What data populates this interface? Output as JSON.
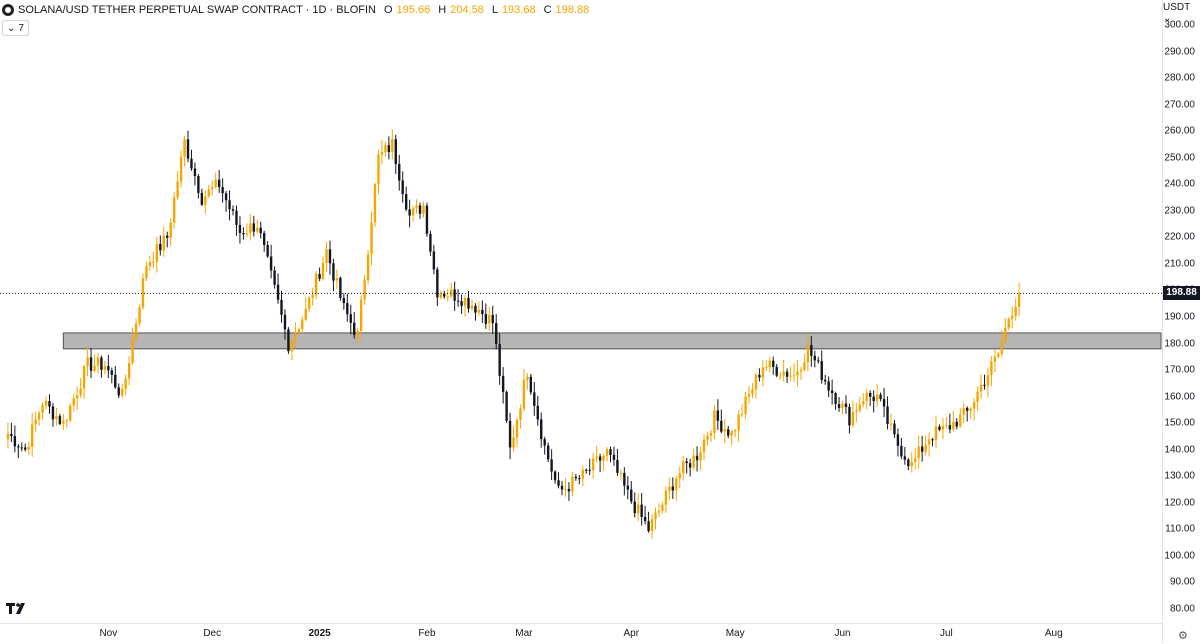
{
  "header": {
    "title": "SOLANA/USD TETHER PERPETUAL SWAP CONTRACT · 1D · BLOFIN",
    "o_label": "O",
    "o_value": "195.66",
    "h_label": "H",
    "h_value": "204.58",
    "l_label": "L",
    "l_value": "193.68",
    "c_label": "C",
    "c_value": "198.88"
  },
  "indicator": {
    "chevron": "⌄",
    "value": "7"
  },
  "price_axis": {
    "currency": "USDT ⌄",
    "last_price": "198.88"
  },
  "colors": {
    "up": "#f7a600",
    "down": "#131722",
    "zone": "#9c9c9c",
    "grid": "#ffffff"
  },
  "icons": {
    "logo": "tradingview-logo",
    "settings": "gear-icon"
  },
  "chart_data": {
    "type": "candlestick",
    "y_range": [
      78,
      305
    ],
    "y_ticks": [
      80,
      90,
      100,
      110,
      120,
      130,
      140,
      150,
      160,
      170,
      180,
      190,
      200,
      210,
      220,
      230,
      240,
      250,
      260,
      270,
      280,
      290,
      300
    ],
    "y_tick_labels": [
      "80.00",
      "90.00",
      "100.00",
      "110.00",
      "120.00",
      "130.00",
      "140.00",
      "150.00",
      "160.00",
      "170.00",
      "180.00",
      "190.00",
      "200.00",
      "210.00",
      "220.00",
      "230.00",
      "240.00",
      "250.00",
      "260.00",
      "270.00",
      "280.00",
      "290.00",
      "300.00"
    ],
    "x_labels": [
      {
        "text": "Nov",
        "date": "2024-11-01"
      },
      {
        "text": "Dec",
        "date": "2024-12-01"
      },
      {
        "text": "2025",
        "date": "2025-01-01",
        "bold": true
      },
      {
        "text": "Feb",
        "date": "2025-02-01"
      },
      {
        "text": "Mar",
        "date": "2025-03-01"
      },
      {
        "text": "Apr",
        "date": "2025-04-01"
      },
      {
        "text": "May",
        "date": "2025-05-01"
      },
      {
        "text": "Jun",
        "date": "2025-06-01"
      },
      {
        "text": "Jul",
        "date": "2025-07-01"
      },
      {
        "text": "Aug",
        "date": "2025-08-01"
      }
    ],
    "resistance_zone": [
      178,
      184
    ],
    "last_close": 198.88,
    "close_path": [
      [
        "2024-10-03",
        146
      ],
      [
        "2024-10-08",
        140
      ],
      [
        "2024-10-13",
        158
      ],
      [
        "2024-10-19",
        150
      ],
      [
        "2024-10-26",
        172
      ],
      [
        "2024-10-31",
        172
      ],
      [
        "2024-11-05",
        160
      ],
      [
        "2024-11-12",
        210
      ],
      [
        "2024-11-18",
        220
      ],
      [
        "2024-11-23",
        256
      ],
      [
        "2024-11-28",
        235
      ],
      [
        "2024-12-03",
        240
      ],
      [
        "2024-12-09",
        222
      ],
      [
        "2024-12-14",
        225
      ],
      [
        "2024-12-19",
        200
      ],
      [
        "2024-12-23",
        180
      ],
      [
        "2024-12-28",
        192
      ],
      [
        "2025-01-03",
        215
      ],
      [
        "2025-01-08",
        193
      ],
      [
        "2025-01-12",
        183
      ],
      [
        "2025-01-18",
        250
      ],
      [
        "2025-01-22",
        255
      ],
      [
        "2025-01-27",
        228
      ],
      [
        "2025-01-31",
        232
      ],
      [
        "2025-02-04",
        200
      ],
      [
        "2025-02-10",
        198
      ],
      [
        "2025-02-15",
        194
      ],
      [
        "2025-02-20",
        188
      ],
      [
        "2025-02-25",
        140
      ],
      [
        "2025-03-02",
        170
      ],
      [
        "2025-03-07",
        141
      ],
      [
        "2025-03-11",
        124
      ],
      [
        "2025-03-18",
        130
      ],
      [
        "2025-03-25",
        139
      ],
      [
        "2025-03-31",
        123
      ],
      [
        "2025-04-06",
        110
      ],
      [
        "2025-04-09",
        117
      ],
      [
        "2025-04-14",
        130
      ],
      [
        "2025-04-20",
        138
      ],
      [
        "2025-04-25",
        152
      ],
      [
        "2025-04-30",
        146
      ],
      [
        "2025-05-09",
        172
      ],
      [
        "2025-05-14",
        170
      ],
      [
        "2025-05-18",
        168
      ],
      [
        "2025-05-22",
        178
      ],
      [
        "2025-05-28",
        164
      ],
      [
        "2025-06-03",
        152
      ],
      [
        "2025-06-07",
        160
      ],
      [
        "2025-06-11",
        160
      ],
      [
        "2025-06-16",
        144
      ],
      [
        "2025-06-21",
        134
      ],
      [
        "2025-06-26",
        145
      ],
      [
        "2025-07-01",
        148
      ],
      [
        "2025-07-07",
        154
      ],
      [
        "2025-07-11",
        164
      ],
      [
        "2025-07-16",
        176
      ],
      [
        "2025-07-19",
        190
      ],
      [
        "2025-07-22",
        198.88
      ]
    ]
  }
}
